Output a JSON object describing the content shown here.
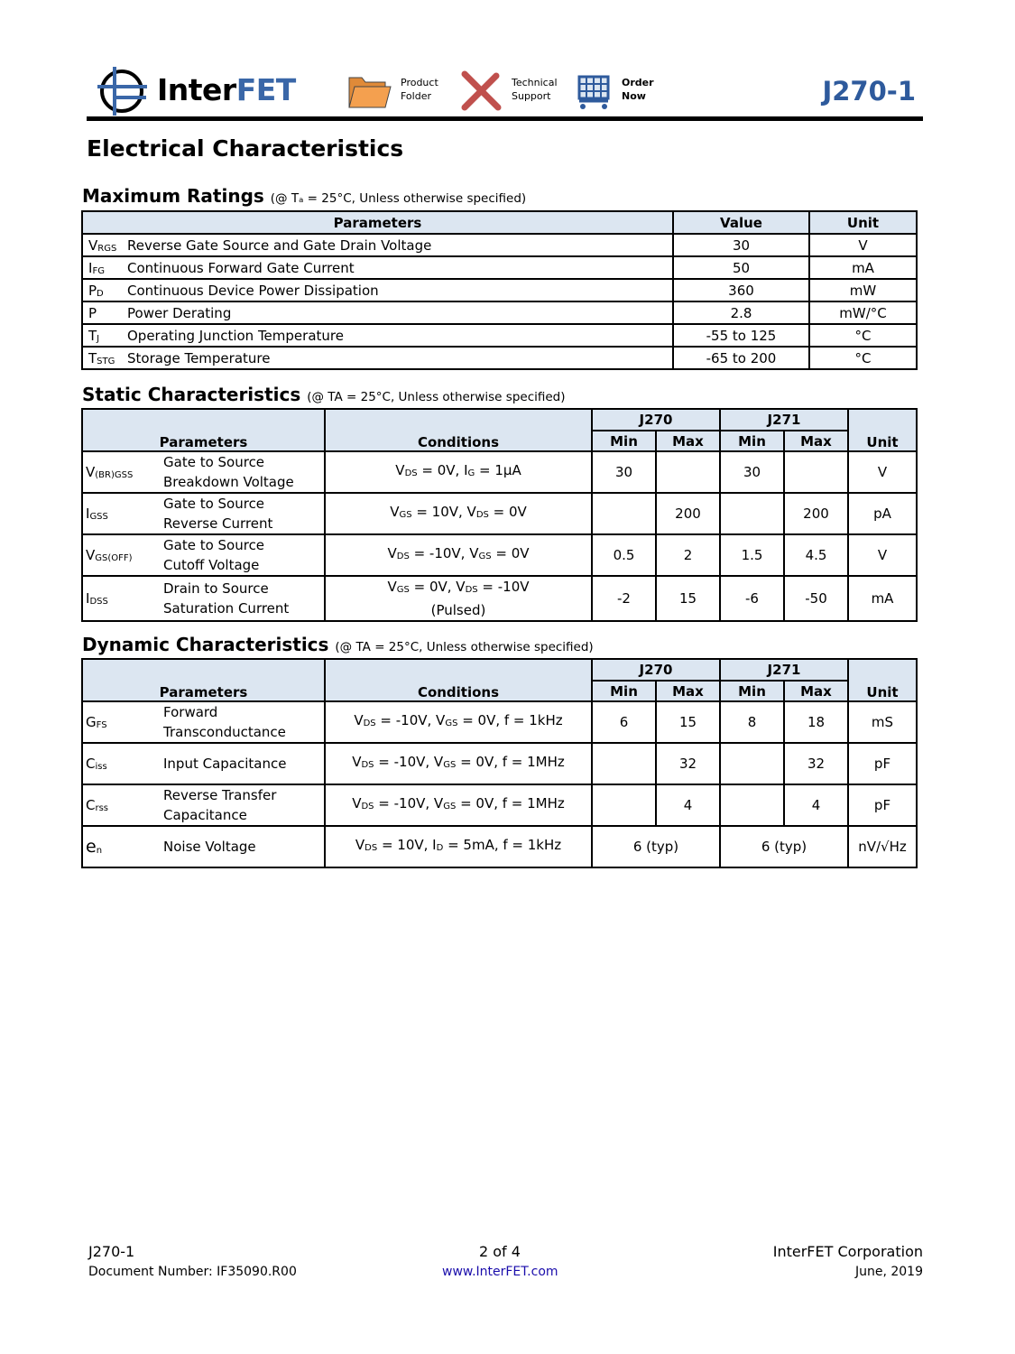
{
  "header": {
    "logo_a": "Inter",
    "logo_b": "FET",
    "nav": [
      {
        "l1": "Product",
        "l2": "Folder",
        "icon": "folder-icon"
      },
      {
        "l1": "Technical",
        "l2": "Support",
        "icon": "tools-icon"
      },
      {
        "l1": "Order",
        "l2": "Now",
        "icon": "cart-icon"
      }
    ],
    "part": "J270-1",
    "colors": {
      "accent": "#2e5a9c",
      "header_fill": "#dce6f1"
    }
  },
  "title": "Electrical Characteristics",
  "max": {
    "title": "Maximum Ratings",
    "note": "(@ Tₐ = 25°C, Unless otherwise specified)",
    "headers": [
      "Parameters",
      "Value",
      "Unit"
    ],
    "rows": [
      [
        "V",
        "RGS",
        "Reverse Gate Source and Gate Drain Voltage",
        "30",
        "V"
      ],
      [
        "I",
        "FG",
        "Continuous Forward Gate Current",
        "50",
        "mA"
      ],
      [
        "P",
        "D",
        "Continuous Device Power Dissipation",
        "360",
        "mW"
      ],
      [
        "P",
        "",
        "Power Derating",
        "2.8",
        "mW/°C"
      ],
      [
        "T",
        "J",
        "Operating Junction Temperature",
        "-55 to 125",
        "°C"
      ],
      [
        "T",
        "STG",
        "Storage Temperature",
        "-65 to 200",
        "°C"
      ]
    ]
  },
  "static": {
    "title": "Static Characteristics",
    "note": "(@ TA = 25°C, Unless otherwise specified)",
    "headers": {
      "params": "Parameters",
      "cond": "Conditions",
      "g1": "J270",
      "g2": "J271",
      "min": "Min",
      "max": "Max",
      "unit": "Unit"
    },
    "rows": [
      {
        "sym": [
          "V",
          "(BR)GSS"
        ],
        "name": [
          "Gate to Source",
          "Breakdown Voltage"
        ],
        "cond": [
          [
            "V",
            ""
          ],
          [
            "DS",
            "s"
          ],
          [
            " = 0V, I",
            ""
          ],
          [
            "G",
            "s"
          ],
          [
            " = 1µA",
            ""
          ]
        ],
        "vals": [
          "30",
          "",
          "30",
          ""
        ],
        "unit": "V"
      },
      {
        "sym": [
          "I",
          "GSS"
        ],
        "name": [
          "Gate to Source",
          "Reverse Current"
        ],
        "cond": [
          [
            "V",
            ""
          ],
          [
            "GS",
            "s"
          ],
          [
            " = 10V, V",
            ""
          ],
          [
            "DS",
            "s"
          ],
          [
            " = 0V",
            ""
          ]
        ],
        "vals": [
          "",
          "200",
          "",
          "200"
        ],
        "unit": "pA"
      },
      {
        "sym": [
          "V",
          "GS(OFF)"
        ],
        "name": [
          "Gate to Source",
          "Cutoff Voltage"
        ],
        "cond": [
          [
            "V",
            ""
          ],
          [
            "DS",
            "s"
          ],
          [
            " = -10V, V",
            ""
          ],
          [
            "GS",
            "s"
          ],
          [
            " = 0V",
            ""
          ]
        ],
        "vals": [
          "0.5",
          "2",
          "1.5",
          "4.5"
        ],
        "unit": "V"
      },
      {
        "sym": [
          "I",
          "DSS"
        ],
        "name": [
          "Drain to Source",
          "Saturation Current"
        ],
        "cond": [
          [
            "V",
            ""
          ],
          [
            "GS",
            "s"
          ],
          [
            " = 0V, V",
            ""
          ],
          [
            "DS",
            "s"
          ],
          [
            " = -10V",
            ""
          ],
          [
            "(Pulsed)",
            "br"
          ]
        ],
        "vals": [
          "-2",
          "15",
          "-6",
          "-50"
        ],
        "unit": "mA"
      }
    ]
  },
  "dynamic": {
    "title": "Dynamic Characteristics",
    "note": "(@ TA = 25°C, Unless otherwise specified)",
    "headers": {
      "params": "Parameters",
      "cond": "Conditions",
      "g1": "J270",
      "g2": "J271",
      "min": "Min",
      "max": "Max",
      "unit": "Unit"
    },
    "rows": [
      {
        "sym": [
          "G",
          "FS"
        ],
        "name": [
          "Forward",
          "Transconductance"
        ],
        "cond": [
          [
            "V",
            ""
          ],
          [
            "DS",
            "s"
          ],
          [
            " = -10V, V",
            ""
          ],
          [
            "GS",
            "s"
          ],
          [
            " = 0V, f = 1kHz",
            ""
          ]
        ],
        "vals": [
          "6",
          "15",
          "8",
          "18"
        ],
        "unit": "mS"
      },
      {
        "sym": [
          "C",
          "iss"
        ],
        "name": [
          "Input Capacitance"
        ],
        "cond": [
          [
            "V",
            ""
          ],
          [
            "DS",
            "s"
          ],
          [
            " = -10V, V",
            ""
          ],
          [
            "GS",
            "s"
          ],
          [
            " = 0V, f = 1MHz",
            ""
          ]
        ],
        "vals": [
          "",
          "32",
          "",
          "32"
        ],
        "unit": "pF"
      },
      {
        "sym": [
          "C",
          "rss"
        ],
        "name": [
          "Reverse Transfer",
          "Capacitance"
        ],
        "cond": [
          [
            "V",
            ""
          ],
          [
            "DS",
            "s"
          ],
          [
            " = -10V, V",
            ""
          ],
          [
            "GS",
            "s"
          ],
          [
            " = 0V, f = 1MHz",
            ""
          ]
        ],
        "vals": [
          "",
          "4",
          "",
          "4"
        ],
        "unit": "pF"
      },
      {
        "sym": [
          "e",
          "n"
        ],
        "name": [
          "Noise Voltage"
        ],
        "cond": [
          [
            "V",
            ""
          ],
          [
            "DS",
            "s"
          ],
          [
            " = 10V, I",
            ""
          ],
          [
            "D",
            "s"
          ],
          [
            " = 5mA, f = 1kHz",
            ""
          ]
        ],
        "typ": [
          "6 (typ)",
          "6 (typ)"
        ],
        "unit": "nV/√Hz"
      }
    ]
  },
  "footer": {
    "part": "J270-1",
    "doc": "Document Number: IF35090.R00",
    "page": "2 of 4",
    "url": "www.InterFET.com",
    "company": "InterFET Corporation",
    "date": "June, 2019"
  }
}
